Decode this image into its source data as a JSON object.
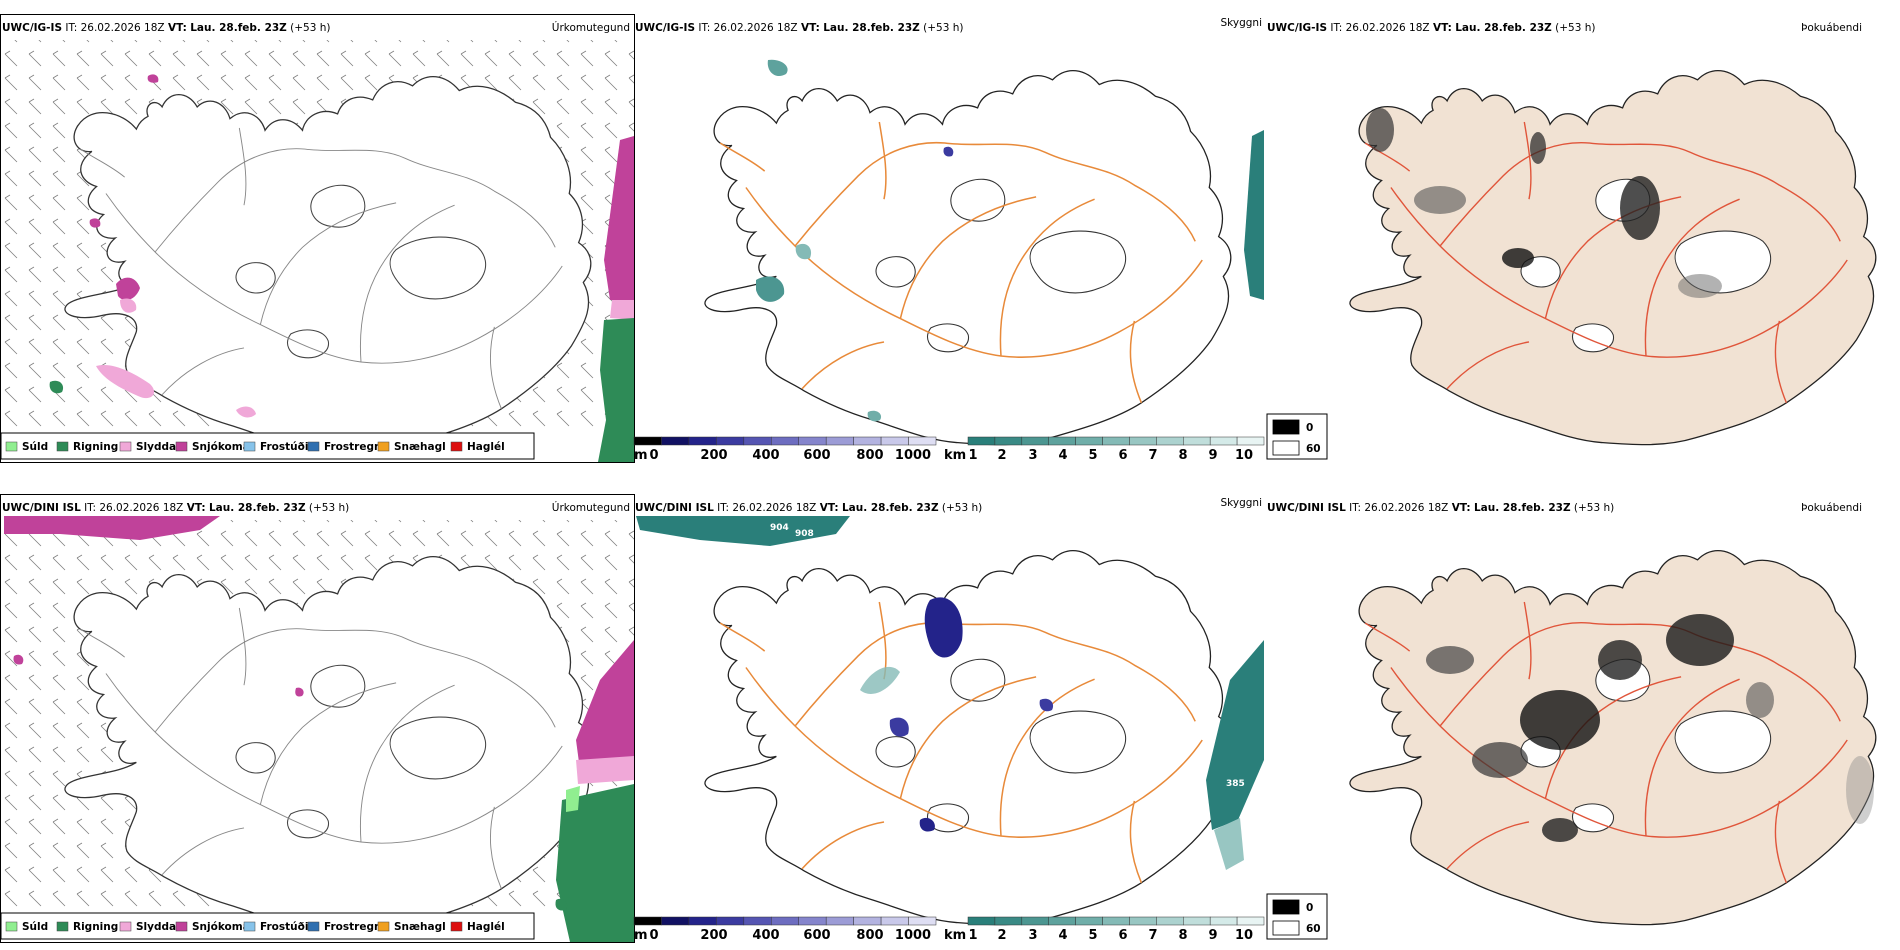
{
  "panels": [
    {
      "id": "ig-precip",
      "model": "UWC/IG-IS",
      "it_label": "IT: 26.02.2026 18Z",
      "vt_prefix": "VT:",
      "vt_value": "Lau. 28.feb. 23Z",
      "lead": "(+53 h)",
      "field": "Úrkomutegund"
    },
    {
      "id": "ig-cloud-base",
      "model": "UWC/IG-IS",
      "it_label": "IT: 26.02.2026 18Z",
      "vt_prefix": "VT:",
      "vt_value": "Lau. 28.feb. 23Z",
      "lead": "(+53 h)",
      "field": "Skyggni"
    },
    {
      "id": "ig-fog",
      "model": "UWC/IG-IS",
      "it_label": "IT: 26.02.2026 18Z",
      "vt_prefix": "VT:",
      "vt_value": "Lau. 28.feb. 23Z",
      "lead": "(+53 h)",
      "field": "Þokuábendi"
    },
    {
      "id": "dini-precip",
      "model": "UWC/DINI ISL",
      "it_label": "IT: 26.02.2026 18Z",
      "vt_prefix": "VT:",
      "vt_value": "Lau. 28.feb. 23Z",
      "lead": "(+53 h)",
      "field": "Úrkomutegund"
    },
    {
      "id": "dini-cloud-base",
      "model": "UWC/DINI ISL",
      "it_label": "IT: 26.02.2026 18Z",
      "vt_prefix": "VT:",
      "vt_value": "Lau. 28.feb. 23Z",
      "lead": "(+53 h)",
      "field": "Skyggni",
      "contour_labels": [
        "904",
        "908",
        "385"
      ]
    },
    {
      "id": "dini-fog",
      "model": "UWC/DINI ISL",
      "it_label": "IT: 26.02.2026 18Z",
      "vt_prefix": "VT:",
      "vt_value": "Lau. 28.feb. 23Z",
      "lead": "(+53 h)",
      "field": "Þokuábendi"
    }
  ],
  "precip_legend": [
    {
      "label": "Súld",
      "color": "#90ee90"
    },
    {
      "label": "Rigning",
      "color": "#2e8b57"
    },
    {
      "label": "Slydda",
      "color": "#f0a8d8"
    },
    {
      "label": "Snjókoma",
      "color": "#c0429a"
    },
    {
      "label": "Frostúði",
      "color": "#87c3ea"
    },
    {
      "label": "Frostregn",
      "color": "#2f6fb0"
    },
    {
      "label": "Snæhagl",
      "color": "#f0a020"
    },
    {
      "label": "Haglél",
      "color": "#dd1010"
    }
  ],
  "cloudbase_scale": {
    "unit": "m",
    "ticks": [
      "0",
      "200",
      "400",
      "600",
      "800",
      "1000"
    ],
    "colors": [
      "#000000",
      "#111163",
      "#23238a",
      "#3b3ba0",
      "#5555b2",
      "#6d6dc0",
      "#8585cc",
      "#9c9cd6",
      "#b3b3e0",
      "#c9c9ea",
      "#dedef3"
    ]
  },
  "visibility_scale": {
    "unit": "km",
    "ticks": [
      "1",
      "2",
      "3",
      "4",
      "5",
      "6",
      "7",
      "8",
      "9",
      "10"
    ],
    "colors": [
      "#2a7f7a",
      "#3a8a85",
      "#4c9691",
      "#5ea29d",
      "#70aea9",
      "#84bab6",
      "#98c6c2",
      "#acd2cf",
      "#c0dedb",
      "#d4eae8",
      "#e8f4f3"
    ]
  },
  "fog_legend": [
    {
      "label": "0",
      "color": "#000000"
    },
    {
      "label": "60",
      "color": "#ffffff"
    }
  ],
  "colors": {
    "land_fog": "#f1e2d3",
    "roads": "#e88a3a",
    "roads_red": "#e0553a",
    "rivers": "#8c96e8",
    "snow_precip": "#c0429a",
    "rain_precip": "#2e8b57",
    "visibility_teal": "#2a7f7a"
  }
}
